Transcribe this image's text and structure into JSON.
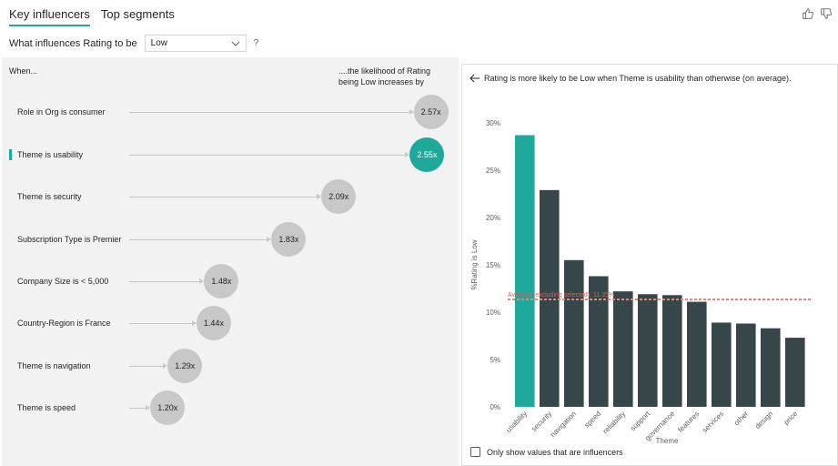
{
  "tabs": [
    {
      "label": "Key influencers",
      "active": true
    },
    {
      "label": "Top segments",
      "active": false
    }
  ],
  "filter": {
    "label": "What influences Rating to be",
    "selected_value": "Low",
    "help_text": "?"
  },
  "influencers_panel": {
    "when_header": "When...",
    "likelihood_header": "....the likelihood of Rating being Low increases by",
    "items": [
      {
        "label": "Role in Org is consumer",
        "value": "2.57x",
        "factor": 2.57,
        "selected": false
      },
      {
        "label": "Theme is usability",
        "value": "2.55x",
        "factor": 2.55,
        "selected": true
      },
      {
        "label": "Theme is security",
        "value": "2.09x",
        "factor": 2.09,
        "selected": false
      },
      {
        "label": "Subscription Type is Premier",
        "value": "1.83x",
        "factor": 1.83,
        "selected": false
      },
      {
        "label": "Company Size is < 5,000",
        "value": "1.48x",
        "factor": 1.48,
        "selected": false
      },
      {
        "label": "Country-Region is France",
        "value": "1.44x",
        "factor": 1.44,
        "selected": false
      },
      {
        "label": "Theme is navigation",
        "value": "1.29x",
        "factor": 1.29,
        "selected": false
      },
      {
        "label": "Theme is speed",
        "value": "1.20x",
        "factor": 1.2,
        "selected": false
      }
    ]
  },
  "detail_panel": {
    "description": "Rating is more likely to be Low when Theme is usability than otherwise (on average).",
    "checkbox_label": "Only show values that are influencers",
    "checkbox_checked": false
  },
  "colors": {
    "accent": "#1fa99a",
    "bar": "#374649",
    "bubble": "#c8c8c8",
    "average_line": "#e8847a"
  },
  "chart_data": {
    "type": "bar",
    "categories": [
      "usability",
      "security",
      "navigation",
      "speed",
      "reliability",
      "support",
      "governance",
      "features",
      "services",
      "other",
      "design",
      "price"
    ],
    "values": [
      28.7,
      22.9,
      15.5,
      13.8,
      12.2,
      11.9,
      11.8,
      11.1,
      8.9,
      8.8,
      8.3,
      7.3
    ],
    "highlight_category": "usability",
    "xlabel": "Theme",
    "ylabel": "%Rating is Low",
    "ylim": [
      0,
      30
    ],
    "yticks": [
      0,
      5,
      10,
      15,
      20,
      25,
      30
    ],
    "ytick_labels": [
      "0%",
      "5%",
      "10%",
      "15%",
      "20%",
      "25%",
      "30%"
    ],
    "reference_line": {
      "label": "Average (excluding selected): 11.35%",
      "value": 11.35
    },
    "grid": false,
    "legend": "none"
  }
}
